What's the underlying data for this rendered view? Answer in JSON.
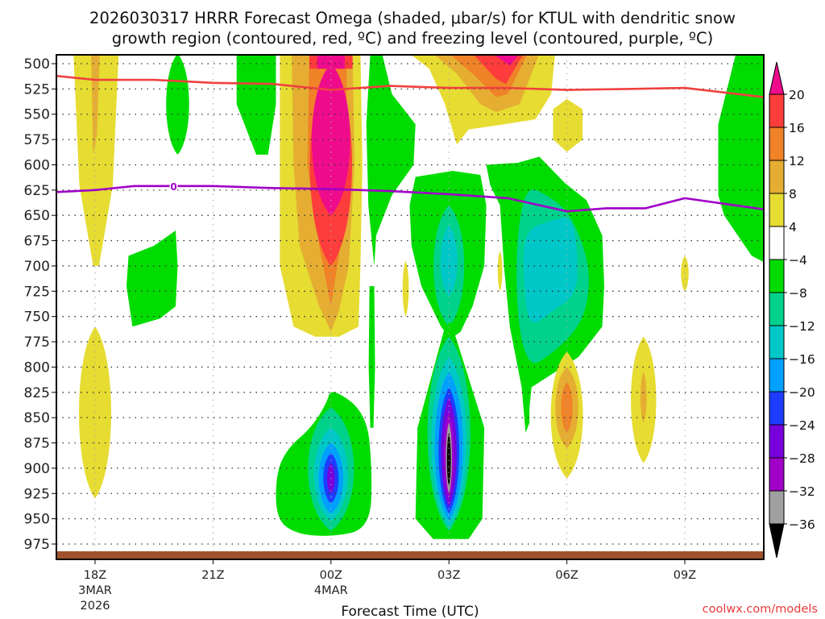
{
  "chart_data": {
    "type": "heatmap",
    "subtype": "time-height filled contour (Omega) with line contours",
    "title": [
      "2026030317 HRRR Forecast Omega (shaded, μbar/s) for KTUL with dendritic snow",
      "growth region (contoured, red, ºC) and freezing level (contoured, purple, ºC)"
    ],
    "model_run": "2026030317",
    "model": "HRRR",
    "station": "KTUL",
    "variable": "Omega",
    "units": "μbar/s",
    "xlabel": "Forecast Time (UTC)",
    "ylabel": "",
    "x_range_hours_from_18Z": [
      -1.0,
      17.0
    ],
    "y_range_mb": [
      493,
      990
    ],
    "y_axis_inverted": true,
    "grid": "dotted",
    "x_ticks": [
      {
        "hour": 0,
        "label": "18Z",
        "sub1": "3MAR",
        "sub2": "2026"
      },
      {
        "hour": 3,
        "label": "21Z",
        "sub1": "",
        "sub2": ""
      },
      {
        "hour": 6,
        "label": "00Z",
        "sub1": "4MAR",
        "sub2": ""
      },
      {
        "hour": 9,
        "label": "03Z",
        "sub1": "",
        "sub2": ""
      },
      {
        "hour": 12,
        "label": "06Z",
        "sub1": "",
        "sub2": ""
      },
      {
        "hour": 15,
        "label": "09Z",
        "sub1": "",
        "sub2": ""
      }
    ],
    "y_ticks": [
      500,
      525,
      550,
      575,
      600,
      625,
      650,
      675,
      700,
      725,
      750,
      775,
      800,
      825,
      850,
      875,
      900,
      925,
      950,
      975
    ],
    "colorbar": {
      "placement": "right",
      "levels": [
        20,
        16,
        12,
        8,
        4,
        -4,
        -8,
        -12,
        -16,
        -20,
        -24,
        -28,
        -32,
        -36
      ],
      "bins": [
        {
          "range": ">20",
          "color": "#ee0c8c"
        },
        {
          "range": "16 to 20",
          "color": "#fd3c3c"
        },
        {
          "range": "12 to 16",
          "color": "#f08228"
        },
        {
          "range": "8 to 12",
          "color": "#e5ae32"
        },
        {
          "range": "4 to 8",
          "color": "#e6dc32"
        },
        {
          "range": "-4 to 4",
          "color": "#ffffff"
        },
        {
          "range": "-8 to -4",
          "color": "#00dc00"
        },
        {
          "range": "-12 to -8",
          "color": "#00d28c"
        },
        {
          "range": "-16 to -12",
          "color": "#00c8c8"
        },
        {
          "range": "-20 to -16",
          "color": "#00a0ff"
        },
        {
          "range": "-24 to -20",
          "color": "#1e3cff"
        },
        {
          "range": "-28 to -24",
          "color": "#7800dc"
        },
        {
          "range": "-32 to -28",
          "color": "#a000c8"
        },
        {
          "range": "-36 to -32",
          "color": "#a0a0a0"
        },
        {
          "range": "<-36",
          "color": "#000000"
        }
      ]
    },
    "omega_features": [
      {
        "name": "rising-max-00Z-upper",
        "hour": 6.0,
        "p_top": 500,
        "p_bottom": 700,
        "peak_value": ">20",
        "peak_p": 560,
        "sign": "positive"
      },
      {
        "name": "rising-max-04Z-top",
        "hour": 10.5,
        "p_top": 500,
        "p_bottom": 565,
        "peak_value": ">20",
        "peak_p": 500,
        "sign": "positive"
      },
      {
        "name": "rising-18Z-column",
        "hour": 0.0,
        "p_top": 500,
        "p_bottom": 700,
        "peak_value": "8 to 12",
        "sign": "positive"
      },
      {
        "name": "rising-18Z-lower",
        "hour": 0.0,
        "p_top": 765,
        "p_bottom": 930,
        "peak_value": "4 to 8",
        "sign": "positive"
      },
      {
        "name": "rising-06Z-lower",
        "hour": 12.0,
        "p_top": 785,
        "p_bottom": 910,
        "peak_value": "12 to 16",
        "sign": "positive"
      },
      {
        "name": "rising-08Z-lower",
        "hour": 14.0,
        "p_top": 770,
        "p_bottom": 895,
        "peak_value": "8 to 12",
        "sign": "positive"
      },
      {
        "name": "rising-06Z-upper",
        "hour": 12.0,
        "p_top": 540,
        "p_bottom": 580,
        "peak_value": "4 to 8",
        "sign": "positive"
      },
      {
        "name": "sinking-03Z-low",
        "hour": 9.0,
        "p_top": 810,
        "p_bottom": 965,
        "peak_value": "<-36",
        "peak_p": 890,
        "sign": "negative"
      },
      {
        "name": "sinking-00Z-low",
        "hour": 6.0,
        "p_top": 820,
        "p_bottom": 955,
        "peak_value": "-32 to -28",
        "peak_p": 905,
        "sign": "negative"
      },
      {
        "name": "sinking-03Z-mid",
        "hour": 9.0,
        "p_top": 615,
        "p_bottom": 790,
        "peak_value": "-16 to -12",
        "sign": "negative"
      },
      {
        "name": "sinking-05Z-mid",
        "hour": 11.5,
        "p_top": 600,
        "p_bottom": 865,
        "peak_value": "-16 to -12",
        "sign": "negative"
      },
      {
        "name": "sinking-1930Z-mid",
        "hour": 1.7,
        "p_top": 670,
        "p_bottom": 760,
        "peak_value": "-8 to -4",
        "sign": "negative"
      },
      {
        "name": "sinking-11Z-upper",
        "hour": 16.5,
        "p_top": 500,
        "p_bottom": 700,
        "peak_value": "-8 to -4",
        "sign": "negative"
      },
      {
        "name": "sinking-01Z-column",
        "hour": 7.2,
        "p_top": 500,
        "p_bottom": 970,
        "peak_value": "-8 to -4",
        "sign": "negative"
      }
    ],
    "dendritic_growth_region_contour": {
      "color": "#f04040",
      "points": [
        [
          -1.0,
          512
        ],
        [
          0.0,
          516
        ],
        [
          1.5,
          516
        ],
        [
          3.0,
          519
        ],
        [
          4.5,
          520
        ],
        [
          6.0,
          526
        ],
        [
          7.5,
          522
        ],
        [
          9.0,
          524
        ],
        [
          10.5,
          524
        ],
        [
          12.0,
          526
        ],
        [
          13.5,
          525
        ],
        [
          15.0,
          524
        ],
        [
          17.0,
          533
        ]
      ]
    },
    "freezing_level_contour": {
      "color": "#a000c8",
      "label": "0",
      "points": [
        [
          -1.0,
          627
        ],
        [
          0.0,
          625
        ],
        [
          1.0,
          621
        ],
        [
          2.0,
          621
        ],
        [
          3.0,
          621
        ],
        [
          4.5,
          623
        ],
        [
          6.0,
          624
        ],
        [
          7.5,
          626
        ],
        [
          9.0,
          629
        ],
        [
          10.5,
          633
        ],
        [
          12.0,
          646
        ],
        [
          13.0,
          643
        ],
        [
          14.0,
          643
        ],
        [
          15.0,
          633
        ],
        [
          17.0,
          644
        ]
      ]
    },
    "ground_band_color": "#a0522d"
  },
  "credit": "coolwx.com/models"
}
